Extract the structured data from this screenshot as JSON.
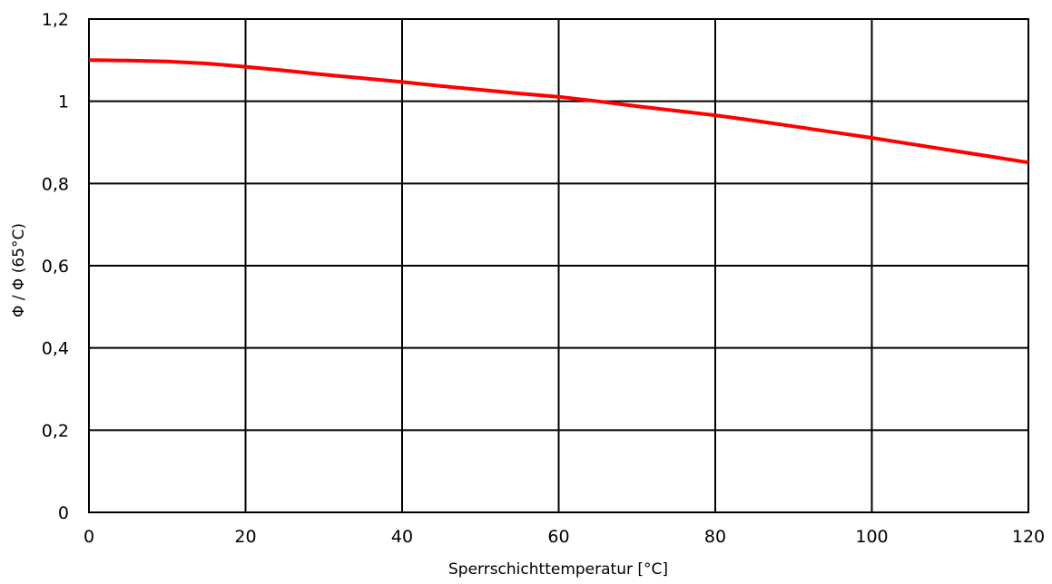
{
  "chart_data": {
    "type": "line",
    "title": "",
    "xlabel": "Sperrschichttemperatur [°C]",
    "ylabel": "Φ / Φ (65°C)",
    "xlim": [
      0,
      120
    ],
    "ylim": [
      0,
      1.2
    ],
    "x_ticks": [
      0,
      20,
      40,
      60,
      80,
      100,
      120
    ],
    "x_tick_labels": [
      "0",
      "20",
      "40",
      "60",
      "80",
      "100",
      "120"
    ],
    "y_ticks": [
      0,
      0.2,
      0.4,
      0.6,
      0.8,
      1.0,
      1.2
    ],
    "y_tick_labels": [
      "0",
      "0,2",
      "0,4",
      "0,6",
      "0,8",
      "1",
      "1,2"
    ],
    "grid": true,
    "legend": "none",
    "series": [
      {
        "color": "#ff0000",
        "x": [
          0,
          5,
          10,
          15,
          20,
          25,
          30,
          35,
          40,
          45,
          50,
          55,
          60,
          65,
          70,
          75,
          80,
          85,
          90,
          95,
          100,
          105,
          110,
          115,
          120
        ],
        "y": [
          1.1,
          1.099,
          1.097,
          1.092,
          1.084,
          1.075,
          1.065,
          1.056,
          1.047,
          1.037,
          1.028,
          1.019,
          1.011,
          1.0,
          0.988,
          0.977,
          0.966,
          0.953,
          0.939,
          0.925,
          0.911,
          0.896,
          0.881,
          0.866,
          0.851
        ]
      }
    ]
  }
}
